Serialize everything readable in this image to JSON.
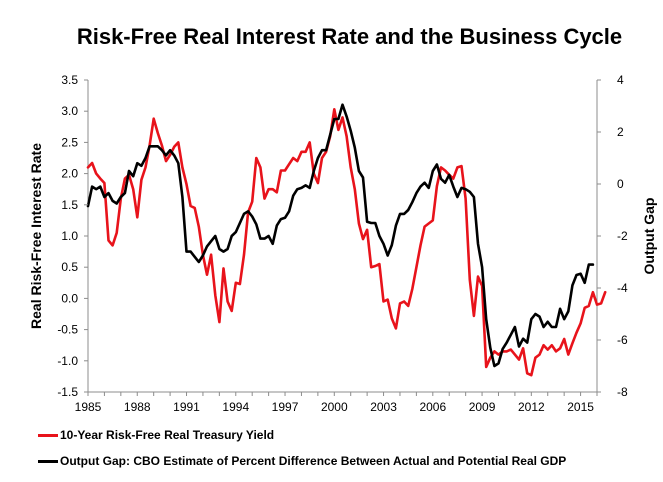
{
  "chart_data": {
    "type": "line",
    "title": "Risk-Free Real Interest Rate and the Business Cycle",
    "xlabel": "",
    "ylabel": "Real Risk-Free Interest Rate",
    "y2label": "Output Gap",
    "xlim": [
      1985,
      2016
    ],
    "ylim": [
      -1.5,
      3.5
    ],
    "y2lim": [
      -8,
      4
    ],
    "xticks": [
      "1985",
      "1988",
      "1991",
      "1994",
      "1997",
      "2000",
      "2003",
      "2006",
      "2009",
      "2012",
      "2015"
    ],
    "yticks": [
      "3.5",
      "3.0",
      "2.5",
      "2.0",
      "1.5",
      "1.0",
      "0.5",
      "0.0",
      "-0.5",
      "-1.0",
      "-1.5"
    ],
    "y2ticks": [
      "4",
      "2",
      "0",
      "-2",
      "-4",
      "-6",
      "-8"
    ],
    "series": [
      {
        "name": "10-Year Risk-Free Real Treasury Yield",
        "axis": "left",
        "color": "#e8131b",
        "points": [
          [
            1985.0,
            2.1
          ],
          [
            1985.25,
            2.17
          ],
          [
            1985.5,
            2.0
          ],
          [
            1985.75,
            1.92
          ],
          [
            1986.0,
            1.85
          ],
          [
            1986.25,
            0.93
          ],
          [
            1986.5,
            0.85
          ],
          [
            1986.75,
            1.05
          ],
          [
            1987.0,
            1.6
          ],
          [
            1987.25,
            1.92
          ],
          [
            1987.5,
            1.98
          ],
          [
            1987.75,
            1.75
          ],
          [
            1988.0,
            1.3
          ],
          [
            1988.25,
            1.9
          ],
          [
            1988.5,
            2.1
          ],
          [
            1988.75,
            2.45
          ],
          [
            1989.0,
            2.88
          ],
          [
            1989.25,
            2.65
          ],
          [
            1989.5,
            2.45
          ],
          [
            1989.75,
            2.2
          ],
          [
            1990.0,
            2.3
          ],
          [
            1990.25,
            2.43
          ],
          [
            1990.5,
            2.5
          ],
          [
            1990.75,
            2.1
          ],
          [
            1991.0,
            1.83
          ],
          [
            1991.25,
            1.48
          ],
          [
            1991.5,
            1.45
          ],
          [
            1991.75,
            1.15
          ],
          [
            1992.0,
            0.7
          ],
          [
            1992.25,
            0.38
          ],
          [
            1992.5,
            0.7
          ],
          [
            1992.75,
            0.05
          ],
          [
            1993.0,
            -0.38
          ],
          [
            1993.25,
            0.48
          ],
          [
            1993.5,
            -0.05
          ],
          [
            1993.75,
            -0.2
          ],
          [
            1994.0,
            0.25
          ],
          [
            1994.25,
            0.23
          ],
          [
            1994.5,
            0.7
          ],
          [
            1994.75,
            1.38
          ],
          [
            1995.0,
            1.55
          ],
          [
            1995.25,
            2.25
          ],
          [
            1995.5,
            2.1
          ],
          [
            1995.75,
            1.6
          ],
          [
            1996.0,
            1.75
          ],
          [
            1996.25,
            1.75
          ],
          [
            1996.5,
            1.7
          ],
          [
            1996.75,
            2.05
          ],
          [
            1997.0,
            2.05
          ],
          [
            1997.25,
            2.15
          ],
          [
            1997.5,
            2.25
          ],
          [
            1997.75,
            2.2
          ],
          [
            1998.0,
            2.35
          ],
          [
            1998.25,
            2.35
          ],
          [
            1998.5,
            2.5
          ],
          [
            1998.75,
            2.0
          ],
          [
            1999.0,
            1.85
          ],
          [
            1999.25,
            2.25
          ],
          [
            1999.5,
            2.35
          ],
          [
            1999.75,
            2.6
          ],
          [
            2000.0,
            3.03
          ],
          [
            2000.25,
            2.7
          ],
          [
            2000.5,
            2.9
          ],
          [
            2000.75,
            2.6
          ],
          [
            2001.0,
            2.1
          ],
          [
            2001.25,
            1.75
          ],
          [
            2001.5,
            1.2
          ],
          [
            2001.75,
            0.95
          ],
          [
            2002.0,
            1.1
          ],
          [
            2002.25,
            0.5
          ],
          [
            2002.5,
            0.52
          ],
          [
            2002.75,
            0.55
          ],
          [
            2003.0,
            -0.05
          ],
          [
            2003.25,
            -0.02
          ],
          [
            2003.5,
            -0.32
          ],
          [
            2003.75,
            -0.48
          ],
          [
            2004.0,
            -0.08
          ],
          [
            2004.25,
            -0.05
          ],
          [
            2004.5,
            -0.12
          ],
          [
            2004.75,
            0.15
          ],
          [
            2005.0,
            0.5
          ],
          [
            2005.25,
            0.85
          ],
          [
            2005.5,
            1.15
          ],
          [
            2005.75,
            1.2
          ],
          [
            2006.0,
            1.25
          ],
          [
            2006.25,
            1.8
          ],
          [
            2006.5,
            2.1
          ],
          [
            2006.75,
            2.05
          ],
          [
            2007.0,
            1.98
          ],
          [
            2007.25,
            1.92
          ],
          [
            2007.5,
            2.1
          ],
          [
            2007.75,
            2.12
          ],
          [
            2008.0,
            1.6
          ],
          [
            2008.25,
            0.3
          ],
          [
            2008.5,
            -0.28
          ],
          [
            2008.75,
            0.35
          ],
          [
            2009.0,
            0.2
          ],
          [
            2009.25,
            -1.1
          ],
          [
            2009.5,
            -0.95
          ],
          [
            2009.75,
            -0.85
          ],
          [
            2010.0,
            -0.9
          ],
          [
            2010.25,
            -0.85
          ],
          [
            2010.5,
            -0.85
          ],
          [
            2010.75,
            -0.82
          ],
          [
            2011.0,
            -0.9
          ],
          [
            2011.25,
            -0.98
          ],
          [
            2011.5,
            -0.8
          ],
          [
            2011.75,
            -1.2
          ],
          [
            2012.0,
            -1.23
          ],
          [
            2012.25,
            -0.95
          ],
          [
            2012.5,
            -0.9
          ],
          [
            2012.75,
            -0.75
          ],
          [
            2013.0,
            -0.82
          ],
          [
            2013.25,
            -0.75
          ],
          [
            2013.5,
            -0.85
          ],
          [
            2013.75,
            -0.8
          ],
          [
            2014.0,
            -0.65
          ],
          [
            2014.25,
            -0.9
          ],
          [
            2014.5,
            -0.72
          ],
          [
            2014.75,
            -0.55
          ],
          [
            2015.0,
            -0.4
          ],
          [
            2015.25,
            -0.15
          ],
          [
            2015.5,
            -0.12
          ],
          [
            2015.75,
            0.1
          ],
          [
            2016.0,
            -0.1
          ],
          [
            2016.25,
            -0.08
          ],
          [
            2016.5,
            0.1
          ]
        ]
      },
      {
        "name": "Output Gap: CBO Estimate of Percent Difference Between Actual and Potential Real GDP",
        "axis": "right",
        "color": "#000000",
        "points": [
          [
            1985.0,
            -0.85
          ],
          [
            1985.25,
            -0.1
          ],
          [
            1985.5,
            -0.2
          ],
          [
            1985.75,
            -0.1
          ],
          [
            1986.0,
            -0.5
          ],
          [
            1986.25,
            -0.35
          ],
          [
            1986.5,
            -0.65
          ],
          [
            1986.75,
            -0.75
          ],
          [
            1987.0,
            -0.5
          ],
          [
            1987.25,
            -0.35
          ],
          [
            1987.5,
            0.5
          ],
          [
            1987.75,
            0.3
          ],
          [
            1988.0,
            0.8
          ],
          [
            1988.25,
            0.7
          ],
          [
            1988.5,
            1.0
          ],
          [
            1988.75,
            1.45
          ],
          [
            1989.0,
            1.45
          ],
          [
            1989.25,
            1.45
          ],
          [
            1989.5,
            1.3
          ],
          [
            1989.75,
            1.1
          ],
          [
            1990.0,
            1.3
          ],
          [
            1990.25,
            1.1
          ],
          [
            1990.5,
            0.8
          ],
          [
            1990.75,
            -0.5
          ],
          [
            1991.0,
            -2.6
          ],
          [
            1991.25,
            -2.6
          ],
          [
            1991.5,
            -2.8
          ],
          [
            1991.75,
            -3.0
          ],
          [
            1992.0,
            -2.75
          ],
          [
            1992.25,
            -2.4
          ],
          [
            1992.5,
            -2.2
          ],
          [
            1992.75,
            -2.0
          ],
          [
            1993.0,
            -2.5
          ],
          [
            1993.25,
            -2.6
          ],
          [
            1993.5,
            -2.5
          ],
          [
            1993.75,
            -2.0
          ],
          [
            1994.0,
            -1.85
          ],
          [
            1994.25,
            -1.5
          ],
          [
            1994.5,
            -1.15
          ],
          [
            1994.75,
            -1.05
          ],
          [
            1995.0,
            -1.25
          ],
          [
            1995.25,
            -1.55
          ],
          [
            1995.5,
            -2.1
          ],
          [
            1995.75,
            -2.1
          ],
          [
            1996.0,
            -2.0
          ],
          [
            1996.25,
            -2.3
          ],
          [
            1996.5,
            -1.6
          ],
          [
            1996.75,
            -1.35
          ],
          [
            1997.0,
            -1.3
          ],
          [
            1997.25,
            -1.05
          ],
          [
            1997.5,
            -0.45
          ],
          [
            1997.75,
            -0.2
          ],
          [
            1998.0,
            -0.15
          ],
          [
            1998.25,
            -0.05
          ],
          [
            1998.5,
            -0.15
          ],
          [
            1998.75,
            0.5
          ],
          [
            1999.0,
            1.0
          ],
          [
            1999.25,
            1.3
          ],
          [
            1999.5,
            1.3
          ],
          [
            1999.75,
            1.9
          ],
          [
            2000.0,
            2.5
          ],
          [
            2000.25,
            2.5
          ],
          [
            2000.5,
            3.05
          ],
          [
            2000.75,
            2.6
          ],
          [
            2001.0,
            2.05
          ],
          [
            2001.25,
            1.4
          ],
          [
            2001.5,
            0.5
          ],
          [
            2001.75,
            0.25
          ],
          [
            2002.0,
            -1.45
          ],
          [
            2002.25,
            -1.5
          ],
          [
            2002.5,
            -1.5
          ],
          [
            2002.75,
            -2.0
          ],
          [
            2003.0,
            -2.3
          ],
          [
            2003.25,
            -2.75
          ],
          [
            2003.5,
            -2.35
          ],
          [
            2003.75,
            -1.6
          ],
          [
            2004.0,
            -1.15
          ],
          [
            2004.25,
            -1.15
          ],
          [
            2004.5,
            -1.0
          ],
          [
            2004.75,
            -0.7
          ],
          [
            2005.0,
            -0.35
          ],
          [
            2005.25,
            -0.1
          ],
          [
            2005.5,
            0.05
          ],
          [
            2005.75,
            -0.15
          ],
          [
            2006.0,
            0.5
          ],
          [
            2006.25,
            0.75
          ],
          [
            2006.5,
            0.2
          ],
          [
            2006.75,
            0.05
          ],
          [
            2007.0,
            0.35
          ],
          [
            2007.25,
            -0.1
          ],
          [
            2007.5,
            -0.5
          ],
          [
            2007.75,
            -0.15
          ],
          [
            2008.0,
            -0.2
          ],
          [
            2008.25,
            -0.3
          ],
          [
            2008.5,
            -0.5
          ],
          [
            2008.75,
            -2.3
          ],
          [
            2009.0,
            -3.2
          ],
          [
            2009.25,
            -5.2
          ],
          [
            2009.5,
            -6.3
          ],
          [
            2009.75,
            -7.0
          ],
          [
            2010.0,
            -6.9
          ],
          [
            2010.25,
            -6.35
          ],
          [
            2010.5,
            -6.1
          ],
          [
            2010.75,
            -5.8
          ],
          [
            2011.0,
            -5.5
          ],
          [
            2011.25,
            -6.25
          ],
          [
            2011.5,
            -5.95
          ],
          [
            2011.75,
            -6.1
          ],
          [
            2012.0,
            -5.2
          ],
          [
            2012.25,
            -5.0
          ],
          [
            2012.5,
            -5.1
          ],
          [
            2012.75,
            -5.5
          ],
          [
            2013.0,
            -5.3
          ],
          [
            2013.25,
            -5.5
          ],
          [
            2013.5,
            -5.5
          ],
          [
            2013.75,
            -4.8
          ],
          [
            2014.0,
            -5.2
          ],
          [
            2014.25,
            -4.9
          ],
          [
            2014.5,
            -3.9
          ],
          [
            2014.75,
            -3.5
          ],
          [
            2015.0,
            -3.45
          ],
          [
            2015.25,
            -3.8
          ],
          [
            2015.5,
            -3.1
          ],
          [
            2015.75,
            -3.1
          ]
        ]
      }
    ]
  }
}
